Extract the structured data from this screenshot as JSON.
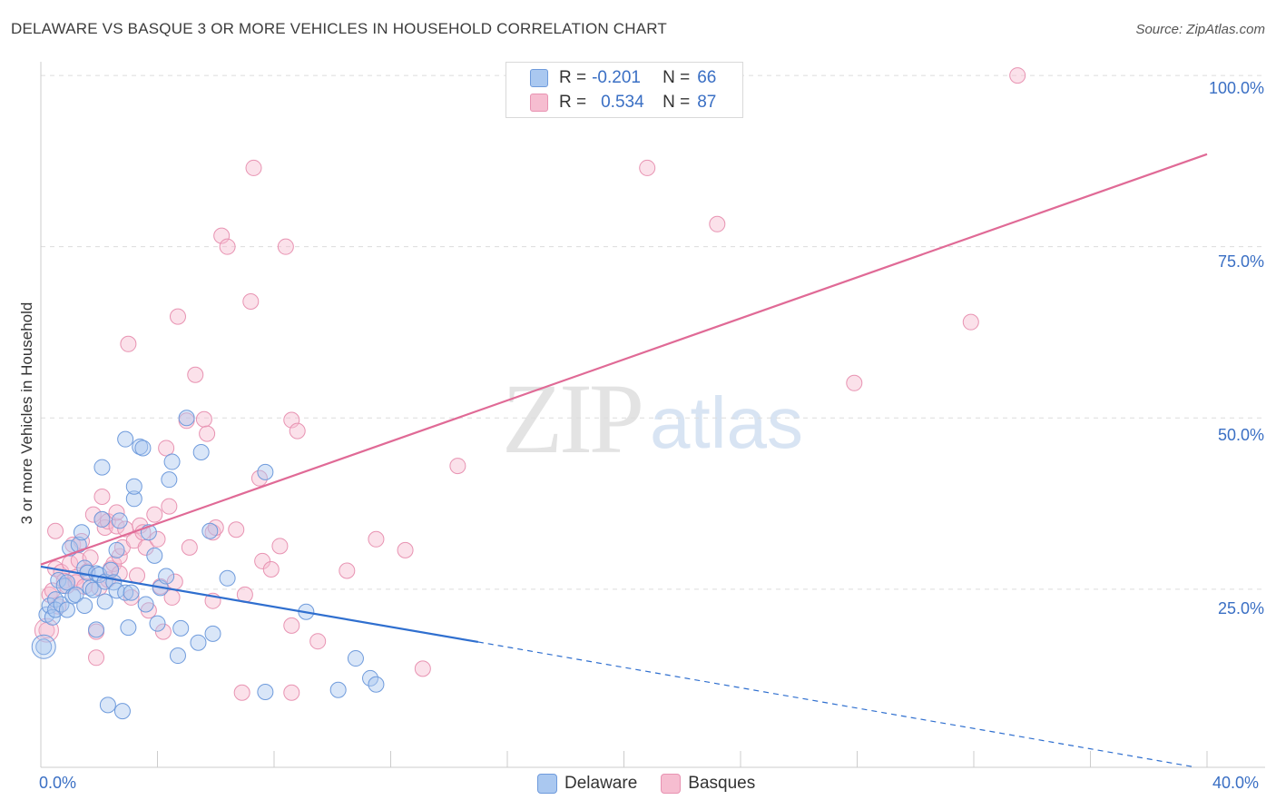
{
  "header": {
    "title": "DELAWARE VS BASQUE 3 OR MORE VEHICLES IN HOUSEHOLD CORRELATION CHART",
    "source": "Source: ZipAtlas.com"
  },
  "watermark": {
    "zip": "ZIP",
    "atlas": "atlas"
  },
  "legend_top": {
    "rows": [
      {
        "r_label": "R =",
        "r_value": "-0.201",
        "n_label": "N =",
        "n_value": "66"
      },
      {
        "r_label": "R =",
        "r_value": "0.534",
        "n_label": "N =",
        "n_value": "87"
      }
    ]
  },
  "legend_bottom": {
    "delaware": "Delaware",
    "basques": "Basques"
  },
  "axes": {
    "ylabel": "3 or more Vehicles in Household",
    "x_min_label": "0.0%",
    "x_max_label": "40.0%",
    "y_tick_labels": [
      "100.0%",
      "75.0%",
      "50.0%",
      "25.0%"
    ]
  },
  "colors": {
    "delaware_fill": "#aac8f0",
    "delaware_stroke": "#6f9bdc",
    "delaware_line": "#2f6fcf",
    "basques_fill": "#f6bdd0",
    "basques_stroke": "#e893b2",
    "basques_line": "#e06a96",
    "tick_text": "#3a6fc4",
    "grid": "#dcdcdc"
  },
  "chart_data": {
    "type": "scatter",
    "title": "DELAWARE VS BASQUE 3 OR MORE VEHICLES IN HOUSEHOLD CORRELATION CHART",
    "xlabel": "",
    "ylabel": "3 or more Vehicles in Household",
    "xlim": [
      0,
      40
    ],
    "ylim": [
      -1,
      102
    ],
    "grid": true,
    "legend": "bottom-center",
    "series": [
      {
        "name": "Delaware",
        "R": -0.201,
        "N": 66,
        "trend": {
          "solid": [
            [
              0,
              28.3
            ],
            [
              15,
              17.3
            ]
          ],
          "dashed": [
            [
              15,
              17.3
            ],
            [
              39.5,
              -0.9
            ]
          ]
        },
        "points": [
          [
            0.1,
            16.6
          ],
          [
            0.2,
            21.3
          ],
          [
            0.3,
            22.6
          ],
          [
            0.4,
            20.9
          ],
          [
            0.5,
            23.5
          ],
          [
            0.5,
            22.0
          ],
          [
            0.6,
            26.3
          ],
          [
            0.7,
            22.8
          ],
          [
            0.8,
            25.5
          ],
          [
            0.9,
            22.0
          ],
          [
            0.9,
            26.0
          ],
          [
            1.0,
            31.0
          ],
          [
            1.1,
            24.0
          ],
          [
            1.2,
            24.2
          ],
          [
            1.3,
            31.5
          ],
          [
            1.4,
            33.3
          ],
          [
            1.5,
            22.6
          ],
          [
            1.5,
            28.1
          ],
          [
            1.6,
            27.4
          ],
          [
            1.7,
            25.2
          ],
          [
            1.8,
            24.9
          ],
          [
            1.9,
            27.3
          ],
          [
            1.9,
            19.1
          ],
          [
            2.0,
            27.1
          ],
          [
            2.1,
            35.2
          ],
          [
            2.1,
            42.8
          ],
          [
            2.2,
            23.2
          ],
          [
            2.2,
            26.1
          ],
          [
            2.3,
            8.1
          ],
          [
            2.4,
            27.8
          ],
          [
            2.5,
            26.0
          ],
          [
            2.6,
            24.8
          ],
          [
            2.6,
            30.7
          ],
          [
            2.7,
            35.0
          ],
          [
            2.8,
            7.2
          ],
          [
            2.9,
            24.5
          ],
          [
            2.9,
            46.9
          ],
          [
            3.0,
            19.4
          ],
          [
            3.1,
            24.5
          ],
          [
            3.2,
            38.2
          ],
          [
            3.2,
            40.0
          ],
          [
            3.4,
            45.8
          ],
          [
            3.5,
            45.6
          ],
          [
            3.6,
            22.8
          ],
          [
            3.7,
            33.3
          ],
          [
            3.9,
            29.9
          ],
          [
            4.0,
            20.0
          ],
          [
            4.1,
            25.2
          ],
          [
            4.3,
            26.9
          ],
          [
            4.4,
            41.0
          ],
          [
            4.5,
            43.6
          ],
          [
            4.7,
            15.3
          ],
          [
            4.8,
            19.3
          ],
          [
            5.0,
            50.0
          ],
          [
            5.4,
            17.2
          ],
          [
            5.5,
            45.0
          ],
          [
            5.9,
            18.5
          ],
          [
            6.4,
            26.6
          ],
          [
            7.7,
            10.0
          ],
          [
            7.7,
            42.1
          ],
          [
            9.1,
            21.7
          ],
          [
            10.2,
            10.3
          ],
          [
            10.8,
            14.9
          ],
          [
            11.3,
            12.0
          ],
          [
            11.5,
            11.1
          ],
          [
            5.8,
            33.5
          ]
        ]
      },
      {
        "name": "Basques",
        "R": 0.534,
        "N": 87,
        "trend": {
          "solid": [
            [
              0,
              28.6
            ],
            [
              40,
              88.5
            ]
          ]
        },
        "points": [
          [
            0.2,
            19.0
          ],
          [
            0.3,
            24.2
          ],
          [
            0.4,
            24.8
          ],
          [
            0.5,
            28.0
          ],
          [
            0.6,
            22.5
          ],
          [
            0.5,
            33.5
          ],
          [
            0.7,
            27.5
          ],
          [
            0.8,
            26.2
          ],
          [
            0.9,
            25.5
          ],
          [
            1.0,
            28.8
          ],
          [
            1.1,
            31.5
          ],
          [
            1.2,
            26.7
          ],
          [
            1.2,
            26.0
          ],
          [
            1.3,
            29.2
          ],
          [
            1.4,
            32.0
          ],
          [
            1.5,
            25.4
          ],
          [
            1.6,
            27.6
          ],
          [
            1.7,
            29.6
          ],
          [
            1.8,
            35.9
          ],
          [
            1.9,
            18.8
          ],
          [
            1.9,
            15.0
          ],
          [
            2.0,
            25.2
          ],
          [
            2.1,
            35.2
          ],
          [
            2.1,
            38.5
          ],
          [
            2.2,
            34.0
          ],
          [
            2.3,
            26.4
          ],
          [
            2.3,
            34.9
          ],
          [
            2.4,
            28.0
          ],
          [
            2.5,
            28.7
          ],
          [
            2.6,
            34.2
          ],
          [
            2.6,
            36.2
          ],
          [
            2.7,
            29.8
          ],
          [
            2.7,
            27.3
          ],
          [
            2.8,
            31.1
          ],
          [
            2.9,
            33.8
          ],
          [
            3.0,
            60.8
          ],
          [
            3.1,
            23.8
          ],
          [
            3.2,
            32.1
          ],
          [
            3.3,
            27.0
          ],
          [
            3.4,
            34.3
          ],
          [
            3.5,
            33.3
          ],
          [
            3.6,
            31.1
          ],
          [
            3.7,
            21.9
          ],
          [
            3.9,
            35.9
          ],
          [
            4.0,
            32.3
          ],
          [
            4.1,
            25.4
          ],
          [
            4.2,
            18.8
          ],
          [
            4.3,
            45.6
          ],
          [
            4.4,
            37.1
          ],
          [
            4.5,
            23.8
          ],
          [
            4.6,
            26.1
          ],
          [
            4.7,
            64.8
          ],
          [
            5.0,
            49.6
          ],
          [
            5.1,
            31.1
          ],
          [
            5.3,
            56.3
          ],
          [
            5.6,
            49.8
          ],
          [
            5.7,
            47.7
          ],
          [
            5.9,
            23.3
          ],
          [
            5.9,
            33.3
          ],
          [
            6.0,
            34.0
          ],
          [
            6.2,
            76.6
          ],
          [
            6.4,
            75.0
          ],
          [
            6.7,
            33.7
          ],
          [
            6.9,
            9.9
          ],
          [
            7.0,
            24.2
          ],
          [
            7.2,
            67.0
          ],
          [
            7.3,
            86.5
          ],
          [
            7.5,
            41.2
          ],
          [
            7.6,
            29.1
          ],
          [
            7.9,
            27.9
          ],
          [
            8.2,
            31.3
          ],
          [
            8.4,
            75.0
          ],
          [
            8.6,
            49.7
          ],
          [
            8.6,
            19.7
          ],
          [
            8.8,
            48.1
          ],
          [
            9.5,
            17.4
          ],
          [
            10.5,
            27.7
          ],
          [
            11.5,
            32.3
          ],
          [
            12.5,
            30.7
          ],
          [
            13.1,
            13.4
          ],
          [
            14.3,
            43.0
          ],
          [
            20.8,
            86.5
          ],
          [
            23.2,
            78.3
          ],
          [
            27.9,
            55.1
          ],
          [
            31.9,
            64.0
          ],
          [
            33.5,
            100.0
          ],
          [
            8.6,
            9.9
          ]
        ]
      }
    ]
  }
}
